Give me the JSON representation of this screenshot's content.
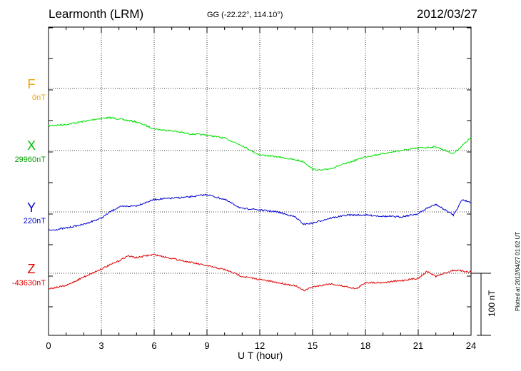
{
  "header": {
    "station": "Learmonth (LRM)",
    "coordinates": "GG (-22.22°, 114.10°)",
    "date": "2012/03/27",
    "plotted_note": "Plotted at 2012/04/27 01:02 UT"
  },
  "scale_bar": {
    "label": "100 nT",
    "value_nT": 100
  },
  "chart_data": {
    "type": "line",
    "xlabel": "U T (hour)",
    "xlim": [
      0,
      24
    ],
    "x_ticks": [
      "0",
      "3",
      "6",
      "9",
      "12",
      "15",
      "18",
      "21",
      "24"
    ],
    "grid": true,
    "series": [
      {
        "name": "F",
        "baseline_label": "0nT",
        "color": "#f4a300",
        "values_offset_nT": []
      },
      {
        "name": "X",
        "baseline_label": "29960nT",
        "color": "#00e000",
        "x": [
          0,
          1,
          2,
          3,
          3.5,
          4,
          5,
          6,
          6.5,
          7,
          8,
          9,
          10,
          11,
          11.5,
          12,
          13,
          14,
          14.5,
          15,
          15.5,
          16,
          17,
          18,
          19,
          20,
          21,
          22,
          23,
          24
        ],
        "values_offset_nT": [
          40,
          42,
          47,
          52,
          53,
          51,
          46,
          35,
          33,
          32,
          27,
          25,
          20,
          8,
          0,
          -7,
          -10,
          -15,
          -18,
          -30,
          -32,
          -29,
          -20,
          -10,
          -5,
          0,
          4,
          6,
          -5,
          21
        ]
      },
      {
        "name": "Y",
        "baseline_label": "220nT",
        "color": "#0000d0",
        "x": [
          0,
          1,
          2,
          3,
          3.5,
          4,
          5,
          6,
          7,
          8,
          9,
          10,
          11,
          11.5,
          12,
          13,
          14,
          14.5,
          15,
          16,
          17,
          18,
          19,
          20,
          21,
          21.5,
          22,
          23,
          23.5,
          24
        ],
        "values_offset_nT": [
          -30,
          -26,
          -20,
          -10,
          0,
          8,
          10,
          20,
          22,
          24,
          28,
          20,
          5,
          5,
          3,
          0,
          -8,
          -20,
          -18,
          -10,
          -5,
          -5,
          -7,
          -8,
          -3,
          6,
          12,
          -5,
          20,
          15
        ]
      },
      {
        "name": "Z",
        "baseline_label": "-43630nT",
        "color": "#e00000",
        "x": [
          0,
          1,
          2,
          3,
          4,
          4.5,
          5,
          5.5,
          6,
          7,
          8,
          9,
          10,
          11,
          12,
          13,
          14,
          14.5,
          15,
          16,
          17,
          17.5,
          18,
          19,
          20,
          21,
          21.5,
          22,
          23,
          24
        ],
        "values_offset_nT": [
          -25,
          -20,
          -6,
          7,
          20,
          28,
          25,
          28,
          30,
          24,
          18,
          12,
          6,
          -5,
          -10,
          -15,
          -20,
          -28,
          -22,
          -17,
          -22,
          -25,
          -15,
          -15,
          -12,
          -8,
          3,
          -5,
          5,
          2
        ]
      }
    ]
  }
}
